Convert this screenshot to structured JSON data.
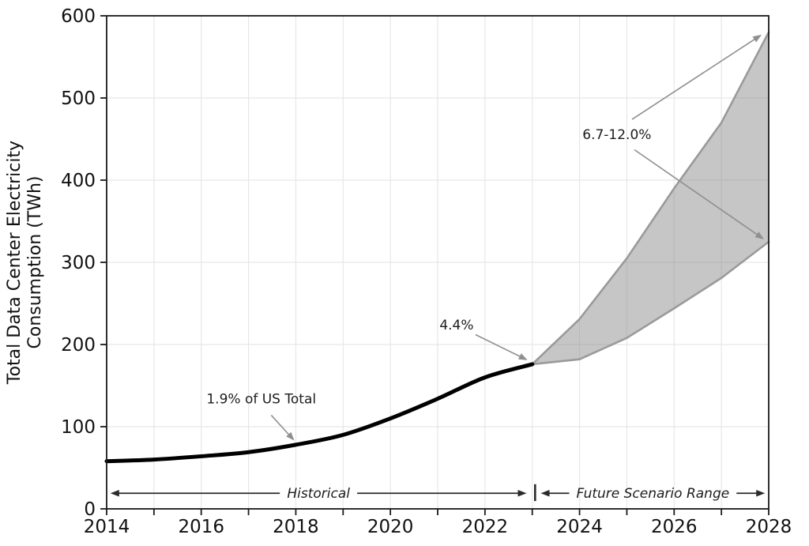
{
  "page": {
    "background": "#ffffff"
  },
  "chart_data": {
    "type": "line",
    "title": "",
    "xlabel": "",
    "ylabel_lines": [
      "Total Data Center Electricity",
      "Consumption (TWh)"
    ],
    "xlim": [
      2014,
      2028
    ],
    "ylim": [
      0,
      600
    ],
    "x_ticks": [
      2014,
      2015,
      2016,
      2017,
      2018,
      2019,
      2020,
      2021,
      2022,
      2023,
      2024,
      2025,
      2026,
      2027,
      2028
    ],
    "x_labeled_ticks": [
      2014,
      2016,
      2018,
      2020,
      2022,
      2024,
      2026,
      2028
    ],
    "y_ticks": [
      0,
      100,
      200,
      300,
      400,
      500,
      600
    ],
    "grid": true,
    "legend_position": "none",
    "series": [
      {
        "name": "Historical",
        "kind": "line",
        "x": [
          2014,
          2015,
          2016,
          2017,
          2018,
          2019,
          2020,
          2021,
          2022,
          2023
        ],
        "values": [
          58,
          60,
          64,
          69,
          78,
          90,
          110,
          134,
          160,
          176
        ]
      },
      {
        "name": "Future Scenario Range",
        "kind": "band",
        "x": [
          2023,
          2024,
          2025,
          2026,
          2027,
          2028
        ],
        "lower": [
          176,
          182,
          208,
          244,
          281,
          325
        ],
        "upper": [
          176,
          231,
          305,
          390,
          470,
          580
        ]
      }
    ],
    "annotations": {
      "point_labels": [
        {
          "text": "1.9% of US Total",
          "tx": 2017.27,
          "ty": 134,
          "arrows": [
            {
              "x1": 2017.48,
              "y1": 114,
              "x2": 2017.97,
              "y2": 83
            }
          ]
        },
        {
          "text": "4.4%",
          "tx": 2021.4,
          "ty": 224,
          "arrows": [
            {
              "x1": 2021.8,
              "y1": 212,
              "x2": 2022.9,
              "y2": 181
            }
          ]
        },
        {
          "text": "6.7-12.0%",
          "tx": 2024.79,
          "ty": 456,
          "arrows": [
            {
              "x1": 2025.11,
              "y1": 474,
              "x2": 2027.85,
              "y2": 577
            },
            {
              "x1": 2025.16,
              "y1": 437,
              "x2": 2027.9,
              "y2": 328
            }
          ]
        }
      ],
      "span_labels": [
        {
          "text": "Historical",
          "x1": 2014.08,
          "x2": 2022.88,
          "y": 19
        },
        {
          "text": "Future Scenario Range",
          "x1": 2023.18,
          "x2": 2027.92,
          "y": 19
        }
      ],
      "divider": {
        "x": 2023.06,
        "y1": 30,
        "y2": 9.5
      }
    },
    "colors": {
      "historical_line": "#000000",
      "band_fill": "rgba(128,128,128,0.45)",
      "band_edge": "#9a9a9a",
      "grid": "#e7e7e7",
      "spine": "#1a1a1a",
      "tick": "#1a1a1a",
      "text": "#111111",
      "annotation_text": "#1c1c1c",
      "arrow": "#8f8f8f",
      "span_arrow": "#2a2a2a"
    }
  }
}
